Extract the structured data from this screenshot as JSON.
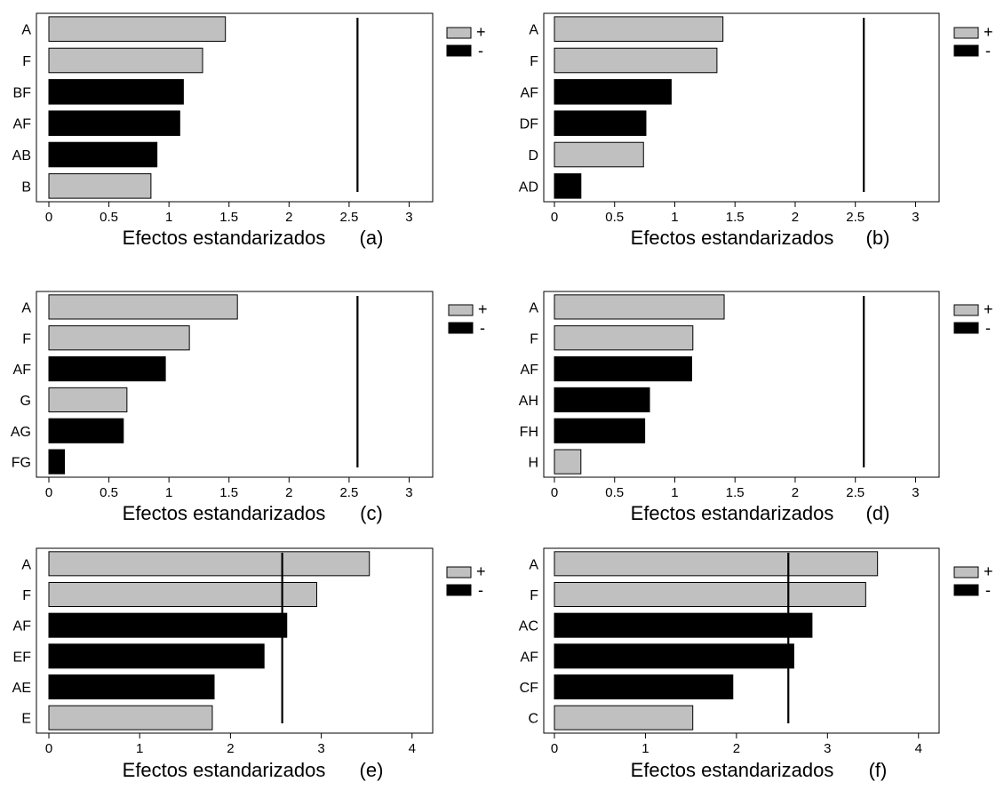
{
  "colors": {
    "positive_fill": "#c0c0c0",
    "negative_fill": "#000000",
    "stroke": "#000000",
    "background": "#ffffff"
  },
  "legend": {
    "positive_label": "+",
    "negative_label": "-"
  },
  "chart_data": [
    {
      "type": "bar",
      "orientation": "horizontal",
      "panel": "(a)",
      "xlabel": "Efectos estandarizados",
      "xlim": [
        0,
        3.1
      ],
      "xticks": [
        0,
        0.5,
        1,
        1.5,
        2,
        2.5,
        3
      ],
      "xtick_labels": [
        "0",
        "0.5",
        "1",
        "1.5",
        "2",
        "2.5",
        "3"
      ],
      "categories": [
        "A",
        "F",
        "BF",
        "AF",
        "AB",
        "B"
      ],
      "values": [
        1.47,
        1.28,
        1.12,
        1.09,
        0.9,
        0.85
      ],
      "signs": [
        "+",
        "+",
        "-",
        "-",
        "-",
        "+"
      ],
      "reference_line": 2.57,
      "legend_position": "top-right"
    },
    {
      "type": "bar",
      "orientation": "horizontal",
      "panel": "(b)",
      "xlabel": "Efectos estandarizados",
      "xlim": [
        0,
        3.1
      ],
      "xticks": [
        0,
        0.5,
        1,
        1.5,
        2,
        2.5,
        3
      ],
      "xtick_labels": [
        "0",
        "0.5",
        "1",
        "1.5",
        "2",
        "2.5",
        "3"
      ],
      "categories": [
        "A",
        "F",
        "AF",
        "DF",
        "D",
        "AD"
      ],
      "values": [
        1.4,
        1.35,
        0.97,
        0.76,
        0.74,
        0.22
      ],
      "signs": [
        "+",
        "+",
        "-",
        "-",
        "+",
        "-"
      ],
      "reference_line": 2.57,
      "legend_position": "top-right"
    },
    {
      "type": "bar",
      "orientation": "horizontal",
      "panel": "(c)",
      "xlabel": "Efectos estandarizados",
      "xlim": [
        0,
        3.1
      ],
      "xticks": [
        0,
        0.5,
        1,
        1.5,
        2,
        2.5,
        3
      ],
      "xtick_labels": [
        "0",
        "0.5",
        "1",
        "1.5",
        "2",
        "2.5",
        "3"
      ],
      "categories": [
        "A",
        "F",
        "AF",
        "G",
        "AG",
        "FG"
      ],
      "values": [
        1.57,
        1.17,
        0.97,
        0.65,
        0.62,
        0.13
      ],
      "signs": [
        "+",
        "+",
        "-",
        "+",
        "-",
        "-"
      ],
      "reference_line": 2.57,
      "legend_position": "top-right"
    },
    {
      "type": "bar",
      "orientation": "horizontal",
      "panel": "(d)",
      "xlabel": "Efectos estandarizados",
      "xlim": [
        0,
        3.1
      ],
      "xticks": [
        0,
        0.5,
        1,
        1.5,
        2,
        2.5,
        3
      ],
      "xtick_labels": [
        "0",
        "0.5",
        "1",
        "1.5",
        "2",
        "2.5",
        "3"
      ],
      "categories": [
        "A",
        "F",
        "AF",
        "AH",
        "FH",
        "H"
      ],
      "values": [
        1.41,
        1.15,
        1.14,
        0.79,
        0.75,
        0.22
      ],
      "signs": [
        "+",
        "+",
        "-",
        "-",
        "-",
        "+"
      ],
      "reference_line": 2.57,
      "legend_position": "top-right"
    },
    {
      "type": "bar",
      "orientation": "horizontal",
      "panel": "(e)",
      "xlabel": "Efectos estandarizados",
      "xlim": [
        0,
        4.1
      ],
      "xticks": [
        0,
        1,
        2,
        3,
        4
      ],
      "xtick_labels": [
        "0",
        "1",
        "2",
        "3",
        "4"
      ],
      "categories": [
        "A",
        "F",
        "AF",
        "EF",
        "AE",
        "E"
      ],
      "values": [
        3.53,
        2.95,
        2.62,
        2.37,
        1.82,
        1.8
      ],
      "signs": [
        "+",
        "+",
        "-",
        "-",
        "-",
        "+"
      ],
      "reference_line": 2.57,
      "legend_position": "top-right"
    },
    {
      "type": "bar",
      "orientation": "horizontal",
      "panel": "(f)",
      "xlabel": "Efectos estandarizados",
      "xlim": [
        0,
        4.1
      ],
      "xticks": [
        0,
        1,
        2,
        3,
        4
      ],
      "xtick_labels": [
        "0",
        "1",
        "2",
        "3",
        "4"
      ],
      "categories": [
        "A",
        "F",
        "AC",
        "AF",
        "CF",
        "C"
      ],
      "values": [
        3.55,
        3.42,
        2.83,
        2.63,
        1.96,
        1.52
      ],
      "signs": [
        "+",
        "+",
        "-",
        "-",
        "-",
        "+"
      ],
      "reference_line": 2.57,
      "legend_position": "top-right"
    }
  ]
}
